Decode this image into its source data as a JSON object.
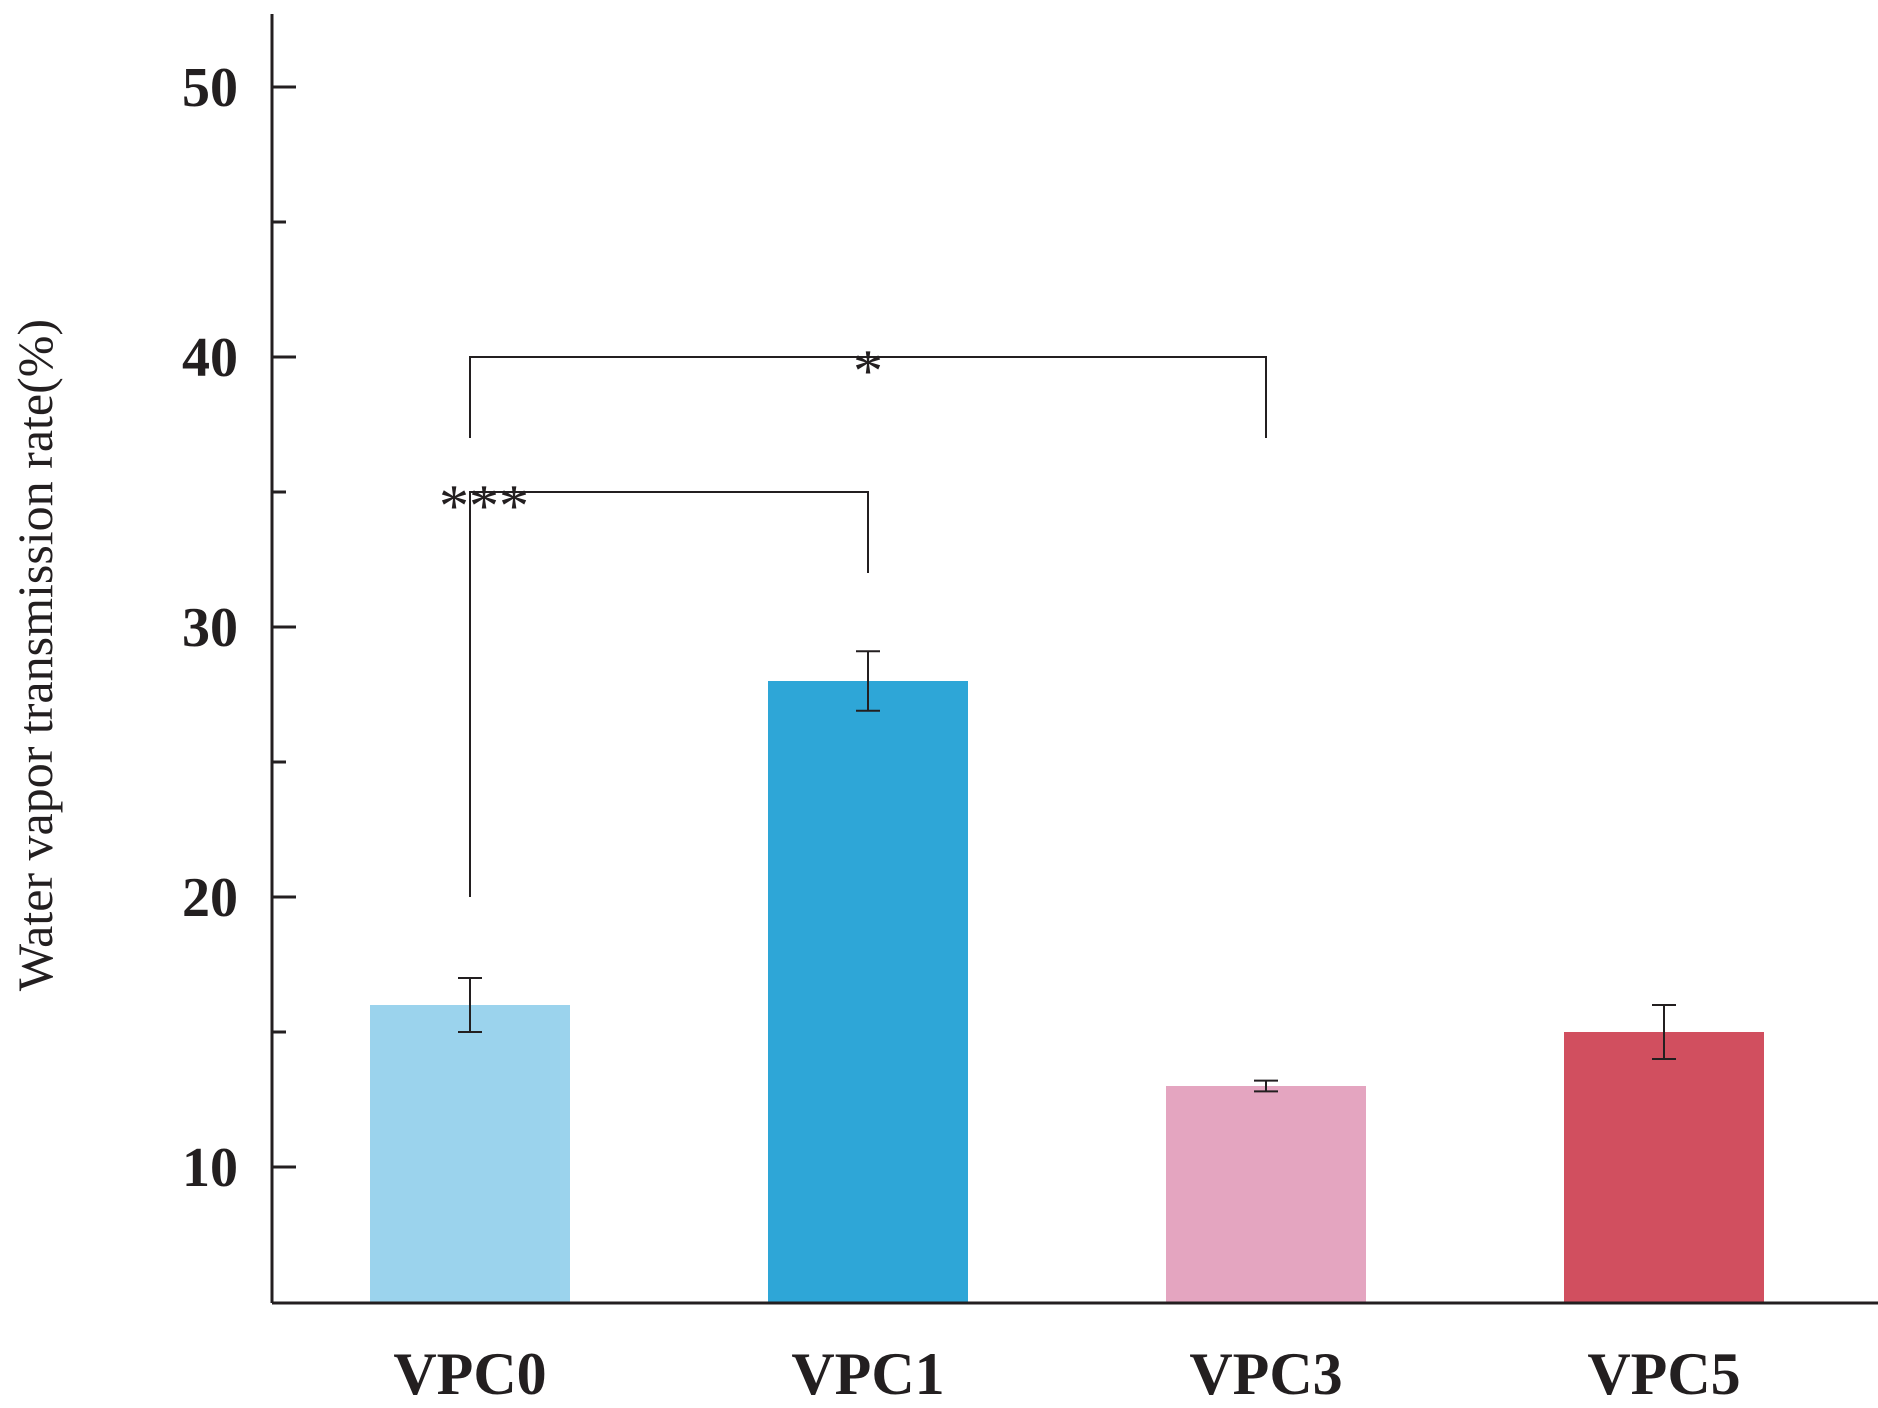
{
  "chart_data": {
    "type": "bar",
    "categories": [
      "VPC0",
      "VPC1",
      "VPC3",
      "VPC5"
    ],
    "values": [
      16,
      28,
      13,
      15
    ],
    "errors": [
      1.0,
      1.1,
      0.2,
      1.0
    ],
    "colors": [
      "#9bd3ed",
      "#2ea6d7",
      "#e4a5c0",
      "#d14f5f"
    ],
    "title": "",
    "xlabel": "",
    "ylabel": "Water vapor transmission rate(%)",
    "ylim": [
      5,
      53
    ],
    "yticks": [
      10,
      20,
      30,
      40,
      50
    ],
    "yticks_minor": [
      15,
      25,
      35,
      45
    ],
    "significance": [
      {
        "from": "VPC0",
        "to": "VPC1",
        "label": "***",
        "y": 35,
        "left_bottom": 20,
        "right_bottom": 32
      },
      {
        "from": "VPC0",
        "to": "VPC3",
        "label": "*",
        "y": 40,
        "left_bottom": 37,
        "right_bottom": 37
      }
    ]
  }
}
